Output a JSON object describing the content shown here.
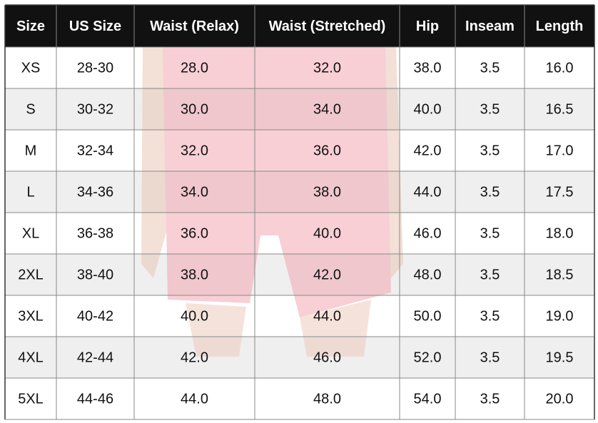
{
  "table": {
    "header": [
      "Size",
      "US Size",
      "Waist (Relax)",
      "Waist (Stretched)",
      "Hip",
      "Inseam",
      "Length"
    ],
    "rows": [
      [
        "XS",
        "28-30",
        "28.0",
        "32.0",
        "38.0",
        "3.5",
        "16.0"
      ],
      [
        "S",
        "30-32",
        "30.0",
        "34.0",
        "40.0",
        "3.5",
        "16.5"
      ],
      [
        "M",
        "32-34",
        "32.0",
        "36.0",
        "42.0",
        "3.5",
        "17.0"
      ],
      [
        "L",
        "34-36",
        "34.0",
        "38.0",
        "44.0",
        "3.5",
        "17.5"
      ],
      [
        "XL",
        "36-38",
        "36.0",
        "40.0",
        "46.0",
        "3.5",
        "18.0"
      ],
      [
        "2XL",
        "38-40",
        "38.0",
        "42.0",
        "48.0",
        "3.5",
        "18.5"
      ],
      [
        "3XL",
        "40-42",
        "40.0",
        "44.0",
        "50.0",
        "3.5",
        "19.0"
      ],
      [
        "4XL",
        "42-44",
        "42.0",
        "46.0",
        "52.0",
        "3.5",
        "19.5"
      ],
      [
        "5XL",
        "44-46",
        "44.0",
        "48.0",
        "54.0",
        "3.5",
        "20.0"
      ]
    ]
  }
}
